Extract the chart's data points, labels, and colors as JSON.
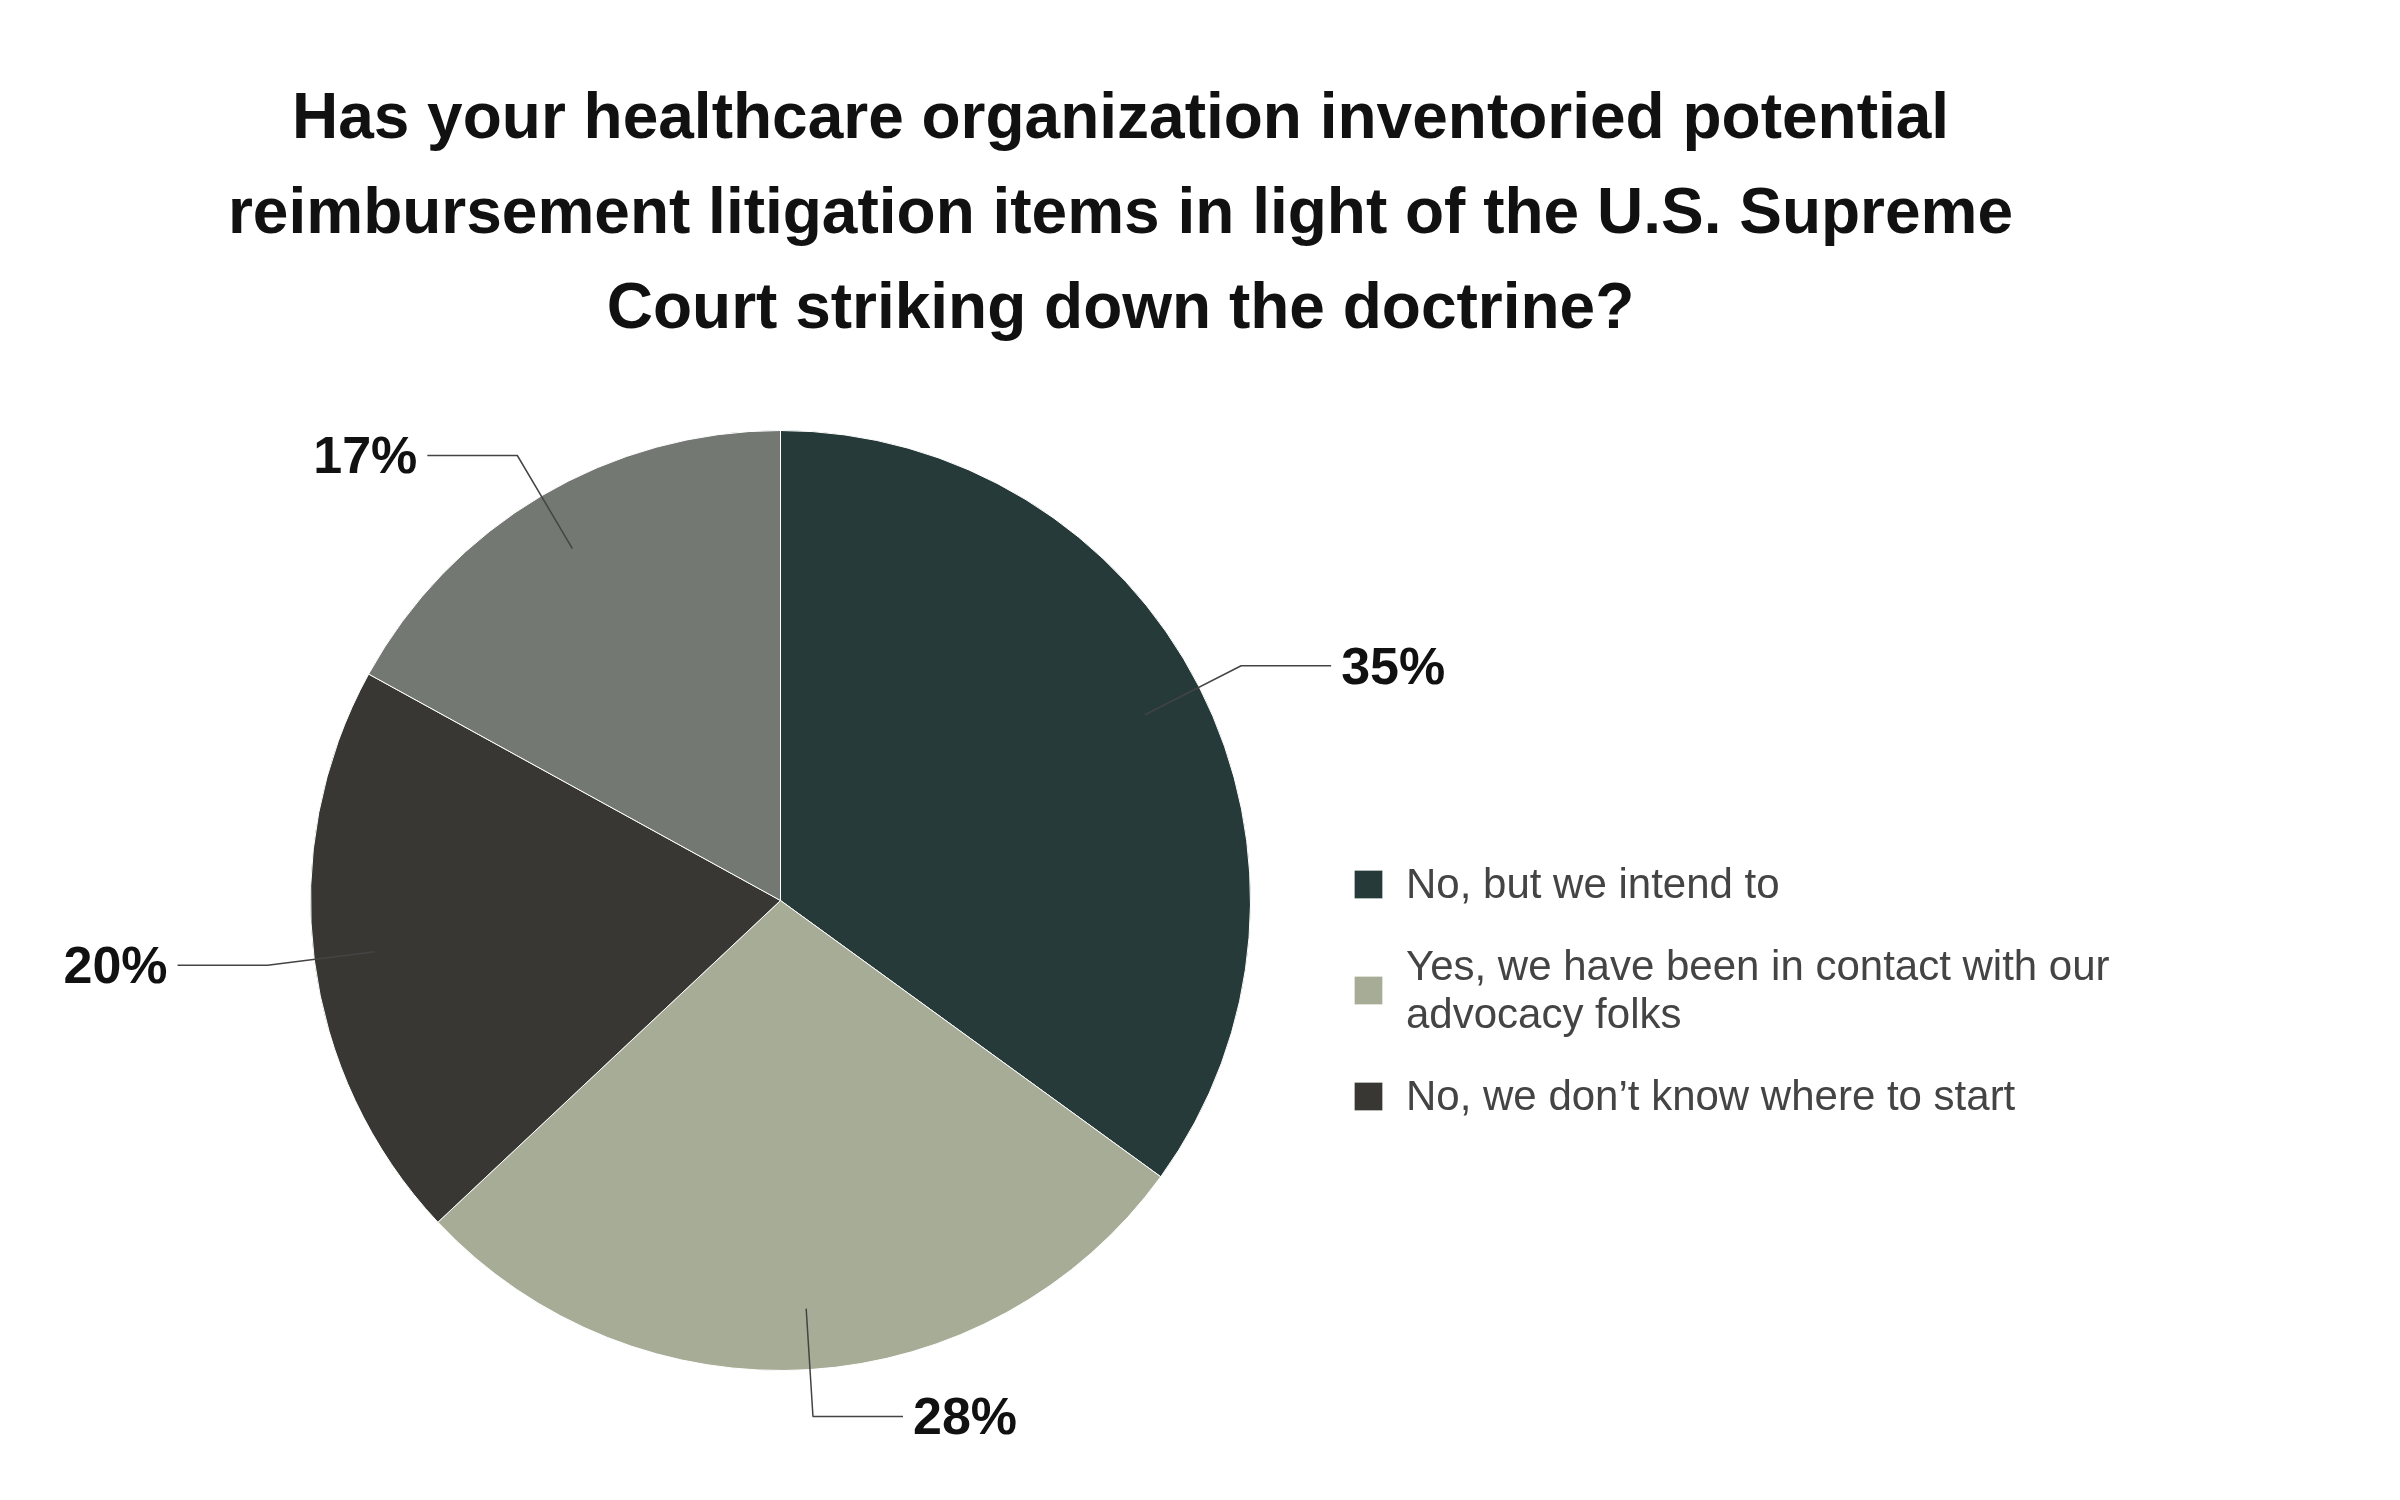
{
  "chart_data": {
    "type": "pie",
    "title": "Has your healthcare organization inventoried potential reimbursement litigation items in light of the U.S. Supreme Court striking down the doctrine?",
    "categories": [
      "No, but we intend to",
      "Yes, we have been in contact with our advocacy folks",
      "No, we don’t know where to start",
      null
    ],
    "values": [
      35,
      28,
      20,
      17
    ],
    "colors": [
      "#263a3a",
      "#a7ac97",
      "#383734",
      "#737873"
    ],
    "value_labels": [
      "35%",
      "28%",
      "20%",
      "17%"
    ],
    "legend": "right"
  }
}
